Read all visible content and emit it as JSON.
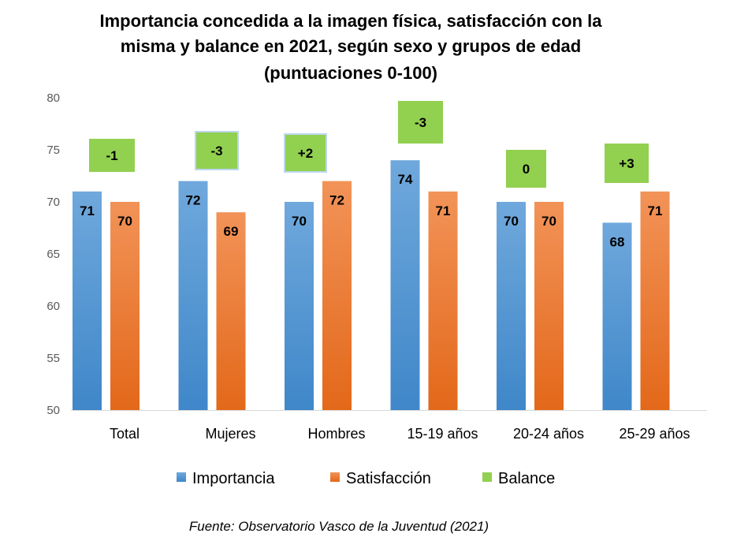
{
  "chart_data": {
    "type": "bar",
    "title_lines": [
      "Importancia concedida a la imagen física, satisfacción con la",
      "misma y balance en 2021, según sexo y grupos de edad",
      "(puntuaciones 0-100)"
    ],
    "categories": [
      "Total",
      "Mujeres",
      "Hombres",
      "15-19 años",
      "20-24 años",
      "25-29 años"
    ],
    "series": [
      {
        "name": "Importancia",
        "values": [
          71,
          72,
          70,
          74,
          70,
          68
        ],
        "color": "#5B9BD5"
      },
      {
        "name": "Satisfacción",
        "values": [
          70,
          69,
          72,
          71,
          70,
          71
        ],
        "color": "#ED7D31"
      },
      {
        "name": "Balance",
        "values": [
          "-1",
          "-3",
          "+2",
          "-3",
          "0",
          "+3"
        ],
        "color": "#92D050"
      }
    ],
    "ylim": [
      50,
      80
    ],
    "yticks": [
      50,
      55,
      60,
      65,
      70,
      75,
      80
    ],
    "grid": false,
    "legend": "bottom",
    "source": "Fuente: Observatorio Vasco de la Juventud (2021)"
  }
}
